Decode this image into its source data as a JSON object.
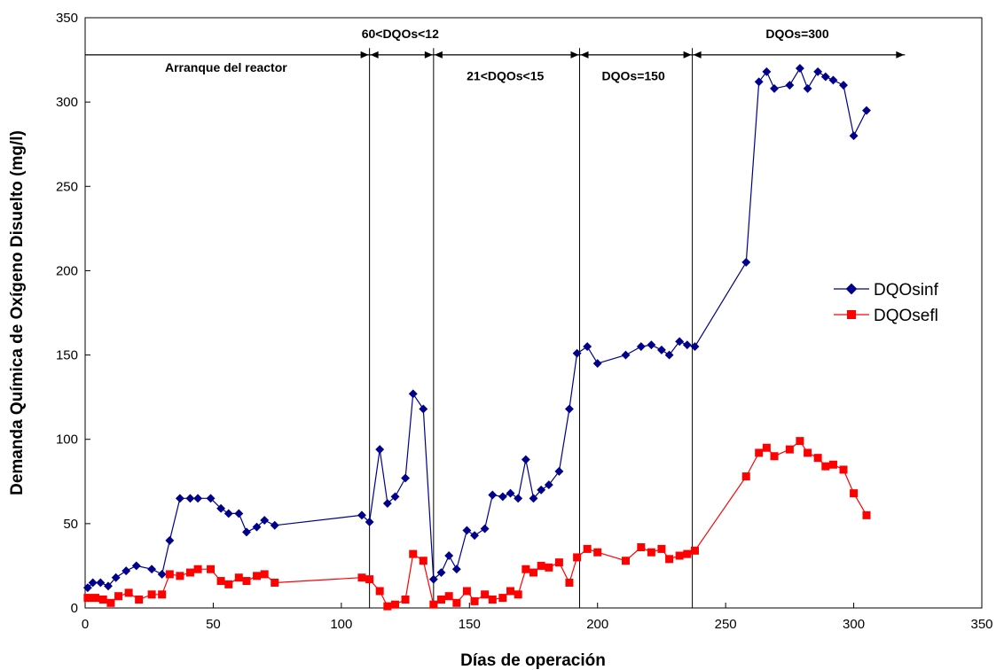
{
  "chart_data": {
    "type": "line",
    "title": "",
    "xlabel": "Días de operación",
    "ylabel": "Demanda Química de Oxígeno Disuelto (mg/l)",
    "xlim": [
      0,
      350
    ],
    "ylim": [
      0,
      350
    ],
    "x_ticks": [
      0,
      50,
      100,
      150,
      200,
      250,
      300,
      350
    ],
    "y_ticks": [
      0,
      50,
      100,
      150,
      200,
      250,
      300,
      350
    ],
    "grid": false,
    "legend_position": "right",
    "series": [
      {
        "name": "DQOsinf",
        "color": "#00008B",
        "marker": "diamond",
        "points": [
          [
            1,
            12
          ],
          [
            3,
            15
          ],
          [
            6,
            15
          ],
          [
            9,
            13
          ],
          [
            12,
            18
          ],
          [
            16,
            22
          ],
          [
            20,
            25
          ],
          [
            26,
            23
          ],
          [
            30,
            20
          ],
          [
            33,
            40
          ],
          [
            37,
            65
          ],
          [
            41,
            65
          ],
          [
            44,
            65
          ],
          [
            49,
            65
          ],
          [
            53,
            59
          ],
          [
            56,
            56
          ],
          [
            60,
            56
          ],
          [
            63,
            45
          ],
          [
            67,
            48
          ],
          [
            70,
            52
          ],
          [
            74,
            49
          ],
          [
            108,
            55
          ],
          [
            111,
            51
          ],
          [
            115,
            94
          ],
          [
            118,
            62
          ],
          [
            121,
            66
          ],
          [
            125,
            77
          ],
          [
            128,
            127
          ],
          [
            132,
            118
          ],
          [
            136,
            17
          ],
          [
            139,
            21
          ],
          [
            142,
            31
          ],
          [
            145,
            23
          ],
          [
            149,
            46
          ],
          [
            152,
            43
          ],
          [
            156,
            47
          ],
          [
            159,
            67
          ],
          [
            163,
            66
          ],
          [
            166,
            68
          ],
          [
            169,
            65
          ],
          [
            172,
            88
          ],
          [
            175,
            65
          ],
          [
            178,
            70
          ],
          [
            181,
            73
          ],
          [
            185,
            81
          ],
          [
            189,
            118
          ],
          [
            192,
            151
          ],
          [
            196,
            155
          ],
          [
            200,
            145
          ],
          [
            211,
            150
          ],
          [
            217,
            155
          ],
          [
            221,
            156
          ],
          [
            225,
            153
          ],
          [
            228,
            150
          ],
          [
            232,
            158
          ],
          [
            235,
            156
          ],
          [
            238,
            155
          ],
          [
            258,
            205
          ],
          [
            263,
            312
          ],
          [
            266,
            318
          ],
          [
            269,
            308
          ],
          [
            275,
            310
          ],
          [
            279,
            320
          ],
          [
            282,
            308
          ],
          [
            286,
            318
          ],
          [
            289,
            315
          ],
          [
            292,
            313
          ],
          [
            296,
            310
          ],
          [
            300,
            280
          ],
          [
            305,
            295
          ]
        ]
      },
      {
        "name": "DQOsefl",
        "color": "#FF0000",
        "marker": "square",
        "points": [
          [
            1,
            6
          ],
          [
            4,
            6
          ],
          [
            7,
            5
          ],
          [
            10,
            3
          ],
          [
            13,
            7
          ],
          [
            17,
            9
          ],
          [
            21,
            5
          ],
          [
            26,
            8
          ],
          [
            30,
            8
          ],
          [
            33,
            20
          ],
          [
            37,
            19
          ],
          [
            41,
            21
          ],
          [
            44,
            23
          ],
          [
            49,
            23
          ],
          [
            53,
            16
          ],
          [
            56,
            14
          ],
          [
            60,
            18
          ],
          [
            63,
            16
          ],
          [
            67,
            19
          ],
          [
            70,
            20
          ],
          [
            74,
            15
          ],
          [
            108,
            18
          ],
          [
            111,
            17
          ],
          [
            115,
            10
          ],
          [
            118,
            1
          ],
          [
            121,
            2
          ],
          [
            125,
            5
          ],
          [
            128,
            32
          ],
          [
            132,
            28
          ],
          [
            136,
            2
          ],
          [
            139,
            5
          ],
          [
            142,
            7
          ],
          [
            145,
            3
          ],
          [
            149,
            10
          ],
          [
            152,
            4
          ],
          [
            156,
            8
          ],
          [
            159,
            5
          ],
          [
            163,
            6
          ],
          [
            166,
            10
          ],
          [
            169,
            8
          ],
          [
            172,
            23
          ],
          [
            175,
            21
          ],
          [
            178,
            25
          ],
          [
            181,
            24
          ],
          [
            185,
            27
          ],
          [
            189,
            15
          ],
          [
            192,
            30
          ],
          [
            196,
            35
          ],
          [
            200,
            33
          ],
          [
            211,
            28
          ],
          [
            217,
            36
          ],
          [
            221,
            33
          ],
          [
            225,
            35
          ],
          [
            228,
            29
          ],
          [
            232,
            31
          ],
          [
            235,
            32
          ],
          [
            238,
            34
          ],
          [
            258,
            78
          ],
          [
            263,
            92
          ],
          [
            266,
            95
          ],
          [
            269,
            90
          ],
          [
            275,
            94
          ],
          [
            279,
            99
          ],
          [
            282,
            92
          ],
          [
            286,
            89
          ],
          [
            289,
            84
          ],
          [
            292,
            85
          ],
          [
            296,
            82
          ],
          [
            300,
            68
          ],
          [
            305,
            55
          ]
        ]
      }
    ],
    "phase_dividers": [
      111,
      136,
      193,
      237
    ],
    "phase_arrow_y": 328,
    "phase_arrow_range": [
      0,
      320
    ],
    "annotations": [
      {
        "text": "Arranque del reactor",
        "x": 55,
        "y": 318
      },
      {
        "text": "60<DQOs<12",
        "x": 123,
        "y": 338
      },
      {
        "text": "21<DQOs<15",
        "x": 164,
        "y": 313
      },
      {
        "text": "DQOs=150",
        "x": 214,
        "y": 313
      },
      {
        "text": "DQOs=300",
        "x": 278,
        "y": 338
      }
    ]
  }
}
